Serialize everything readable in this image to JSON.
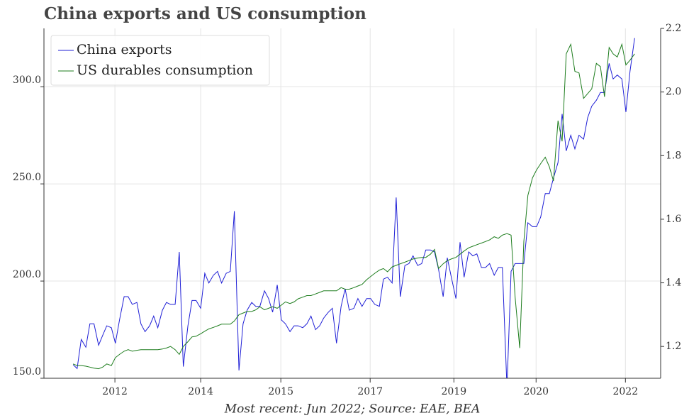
{
  "chart_data": {
    "type": "line",
    "title": "China exports and US consumption",
    "footnote": "Most recent: Jun 2022; Source: EAE, BEA",
    "legend": "upper left",
    "grid": true,
    "x": [
      2011.42,
      2011.5,
      2011.58,
      2011.67,
      2011.75,
      2011.83,
      2011.92,
      2012.0,
      2012.08,
      2012.17,
      2012.25,
      2012.33,
      2012.42,
      2012.5,
      2012.58,
      2012.67,
      2012.75,
      2012.83,
      2012.92,
      2013.0,
      2013.08,
      2013.17,
      2013.25,
      2013.33,
      2013.42,
      2013.5,
      2013.58,
      2013.67,
      2013.75,
      2013.83,
      2013.92,
      2014.0,
      2014.08,
      2014.17,
      2014.25,
      2014.33,
      2014.42,
      2014.5,
      2014.58,
      2014.67,
      2014.75,
      2014.83,
      2014.92,
      2015.0,
      2015.08,
      2015.17,
      2015.25,
      2015.33,
      2015.42,
      2015.5,
      2015.58,
      2015.67,
      2015.75,
      2015.83,
      2015.92,
      2016.0,
      2016.08,
      2016.17,
      2016.25,
      2016.33,
      2016.42,
      2016.5,
      2016.58,
      2016.67,
      2016.75,
      2016.83,
      2016.92,
      2017.0,
      2017.08,
      2017.17,
      2017.25,
      2017.33,
      2017.42,
      2017.5,
      2017.58,
      2017.67,
      2017.75,
      2017.83,
      2017.92,
      2018.0,
      2018.08,
      2018.17,
      2018.25,
      2018.33,
      2018.42,
      2018.5,
      2018.58,
      2018.67,
      2018.75,
      2018.83,
      2018.92,
      2019.0,
      2019.08,
      2019.17,
      2019.25,
      2019.33,
      2019.42,
      2019.5,
      2019.58,
      2019.67,
      2019.75,
      2019.83,
      2019.92,
      2020.0,
      2020.08,
      2020.17,
      2020.25,
      2020.33,
      2020.42,
      2020.5,
      2020.58,
      2020.67,
      2020.75,
      2020.83,
      2020.92,
      2021.0,
      2021.08,
      2021.17,
      2021.25,
      2021.33,
      2021.42,
      2021.5,
      2021.58,
      2021.67,
      2021.75,
      2021.83,
      2021.92,
      2022.0,
      2022.08,
      2022.17,
      2022.25,
      2022.33,
      2022.42
    ],
    "series": [
      {
        "name": "China exports",
        "color": "#1f1fd6",
        "values": [
          157,
          155,
          170,
          166,
          178,
          178,
          167,
          172,
          177,
          176,
          168,
          180,
          192,
          192,
          188,
          189,
          178,
          174,
          177,
          182,
          176,
          185,
          189,
          188,
          188,
          215,
          156,
          177,
          190,
          190,
          186,
          204,
          199,
          203,
          205,
          199,
          204,
          205,
          236,
          154,
          178,
          185,
          189,
          187,
          187,
          195,
          191,
          184,
          198,
          180,
          178,
          174,
          177,
          177,
          176,
          178,
          182,
          175,
          177,
          181,
          184,
          186,
          168,
          187,
          196,
          185,
          186,
          191,
          187,
          191,
          191,
          188,
          187,
          201,
          202,
          199,
          243,
          192,
          208,
          209,
          213,
          208,
          209,
          216,
          216,
          215,
          206,
          192,
          212,
          202,
          191,
          220,
          202,
          215,
          213,
          214,
          207,
          207,
          209,
          203,
          207,
          207,
          145,
          205,
          209,
          209,
          209,
          230,
          228,
          228,
          233,
          245,
          245,
          253,
          261,
          286,
          267,
          275,
          268,
          275,
          273,
          284,
          290,
          293,
          297,
          297,
          312,
          304,
          306,
          304,
          287,
          308,
          325
        ]
      },
      {
        "name": "US durables consumption",
        "color": "#1e7d1e",
        "axis": "y2",
        "values": [
          1.145,
          1.14,
          1.14,
          1.138,
          1.135,
          1.132,
          1.13,
          1.135,
          1.145,
          1.14,
          1.165,
          1.175,
          1.185,
          1.19,
          1.185,
          1.188,
          1.19,
          1.19,
          1.19,
          1.19,
          1.19,
          1.192,
          1.195,
          1.2,
          1.19,
          1.175,
          1.2,
          1.215,
          1.23,
          1.232,
          1.24,
          1.248,
          1.255,
          1.26,
          1.265,
          1.27,
          1.27,
          1.27,
          1.28,
          1.3,
          1.305,
          1.31,
          1.31,
          1.315,
          1.325,
          1.315,
          1.32,
          1.325,
          1.32,
          1.33,
          1.34,
          1.335,
          1.34,
          1.35,
          1.355,
          1.36,
          1.36,
          1.365,
          1.37,
          1.375,
          1.375,
          1.375,
          1.375,
          1.385,
          1.38,
          1.38,
          1.385,
          1.39,
          1.395,
          1.41,
          1.42,
          1.43,
          1.44,
          1.445,
          1.435,
          1.45,
          1.455,
          1.46,
          1.465,
          1.47,
          1.475,
          1.478,
          1.48,
          1.48,
          1.49,
          1.505,
          1.445,
          1.46,
          1.47,
          1.475,
          1.48,
          1.49,
          1.5,
          1.51,
          1.515,
          1.52,
          1.525,
          1.53,
          1.535,
          1.545,
          1.54,
          1.55,
          1.555,
          1.55,
          1.355,
          1.195,
          1.53,
          1.675,
          1.73,
          1.755,
          1.775,
          1.795,
          1.765,
          1.72,
          1.91,
          1.845,
          2.12,
          2.15,
          2.065,
          2.06,
          1.98,
          1.995,
          2.01,
          2.09,
          2.08,
          1.985,
          2.14,
          2.12,
          2.11,
          2.15,
          2.085,
          2.1,
          2.12
        ]
      }
    ],
    "xlim": [
      2010.85,
      2022.93
    ],
    "xticks": [
      {
        "value": 2012.24,
        "label": "2012"
      },
      {
        "value": 2013.92,
        "label": "2014"
      },
      {
        "value": 2015.49,
        "label": "2015"
      },
      {
        "value": 2017.24,
        "label": "2017"
      },
      {
        "value": 2018.88,
        "label": "2019"
      },
      {
        "value": 2020.49,
        "label": "2020"
      },
      {
        "value": 2022.24,
        "label": "2022"
      }
    ],
    "ylim": [
      150,
      330
    ],
    "yticks": [
      {
        "value": 150,
        "label": "150.0"
      },
      {
        "value": 200,
        "label": "200.0"
      },
      {
        "value": 250,
        "label": "250.0"
      },
      {
        "value": 300,
        "label": "300.0"
      }
    ],
    "y2lim": [
      1.1,
      2.2
    ],
    "y2ticks": [
      1.2,
      1.4,
      1.6,
      1.8,
      {
        "value": 2,
        "label": "2.0"
      },
      2.2
    ]
  }
}
